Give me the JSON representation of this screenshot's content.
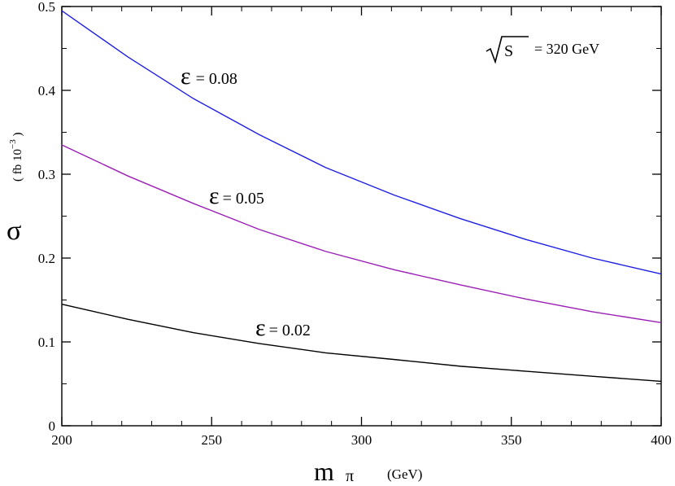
{
  "chart_data": {
    "type": "line",
    "xlabel": {
      "symbol": "m",
      "subscript": "π",
      "unit": "(GeV)"
    },
    "ylabel": {
      "symbol": "σ",
      "unit_prefix": "( fb 10",
      "unit_exp": "−3",
      "unit_suffix": " )"
    },
    "xlim": [
      200,
      400
    ],
    "ylim": [
      0,
      0.5
    ],
    "xticks": [
      200,
      250,
      300,
      350,
      400
    ],
    "xtick_labels": [
      "200",
      "250",
      "300",
      "350",
      "400"
    ],
    "yticks": [
      0,
      0.1,
      0.2,
      0.3,
      0.4,
      0.5
    ],
    "ytick_labels": [
      "0",
      "0.1",
      "0.2",
      "0.3",
      "0.4",
      "0.5"
    ],
    "grid": false,
    "annotation": {
      "sqrt_symbol": "S",
      "text": "= 320  GeV"
    },
    "x": [
      200,
      222,
      244,
      266,
      288,
      311,
      333,
      355,
      377,
      400
    ],
    "series": [
      {
        "label_symbol": "ε",
        "label_text": "= 0.08",
        "color": "#1f1fe0",
        "values": [
          0.495,
          0.44,
          0.39,
          0.347,
          0.308,
          0.275,
          0.247,
          0.222,
          0.2,
          0.181
        ]
      },
      {
        "label_symbol": "ε",
        "label_text": "= 0.05",
        "color": "#9b1fb6",
        "values": [
          0.335,
          0.298,
          0.265,
          0.234,
          0.208,
          0.186,
          0.168,
          0.151,
          0.136,
          0.123
        ]
      },
      {
        "label_symbol": "ε",
        "label_text": "= 0.02",
        "color": "#000000",
        "values": [
          0.145,
          0.127,
          0.111,
          0.098,
          0.087,
          0.079,
          0.071,
          0.065,
          0.059,
          0.053
        ]
      }
    ]
  }
}
